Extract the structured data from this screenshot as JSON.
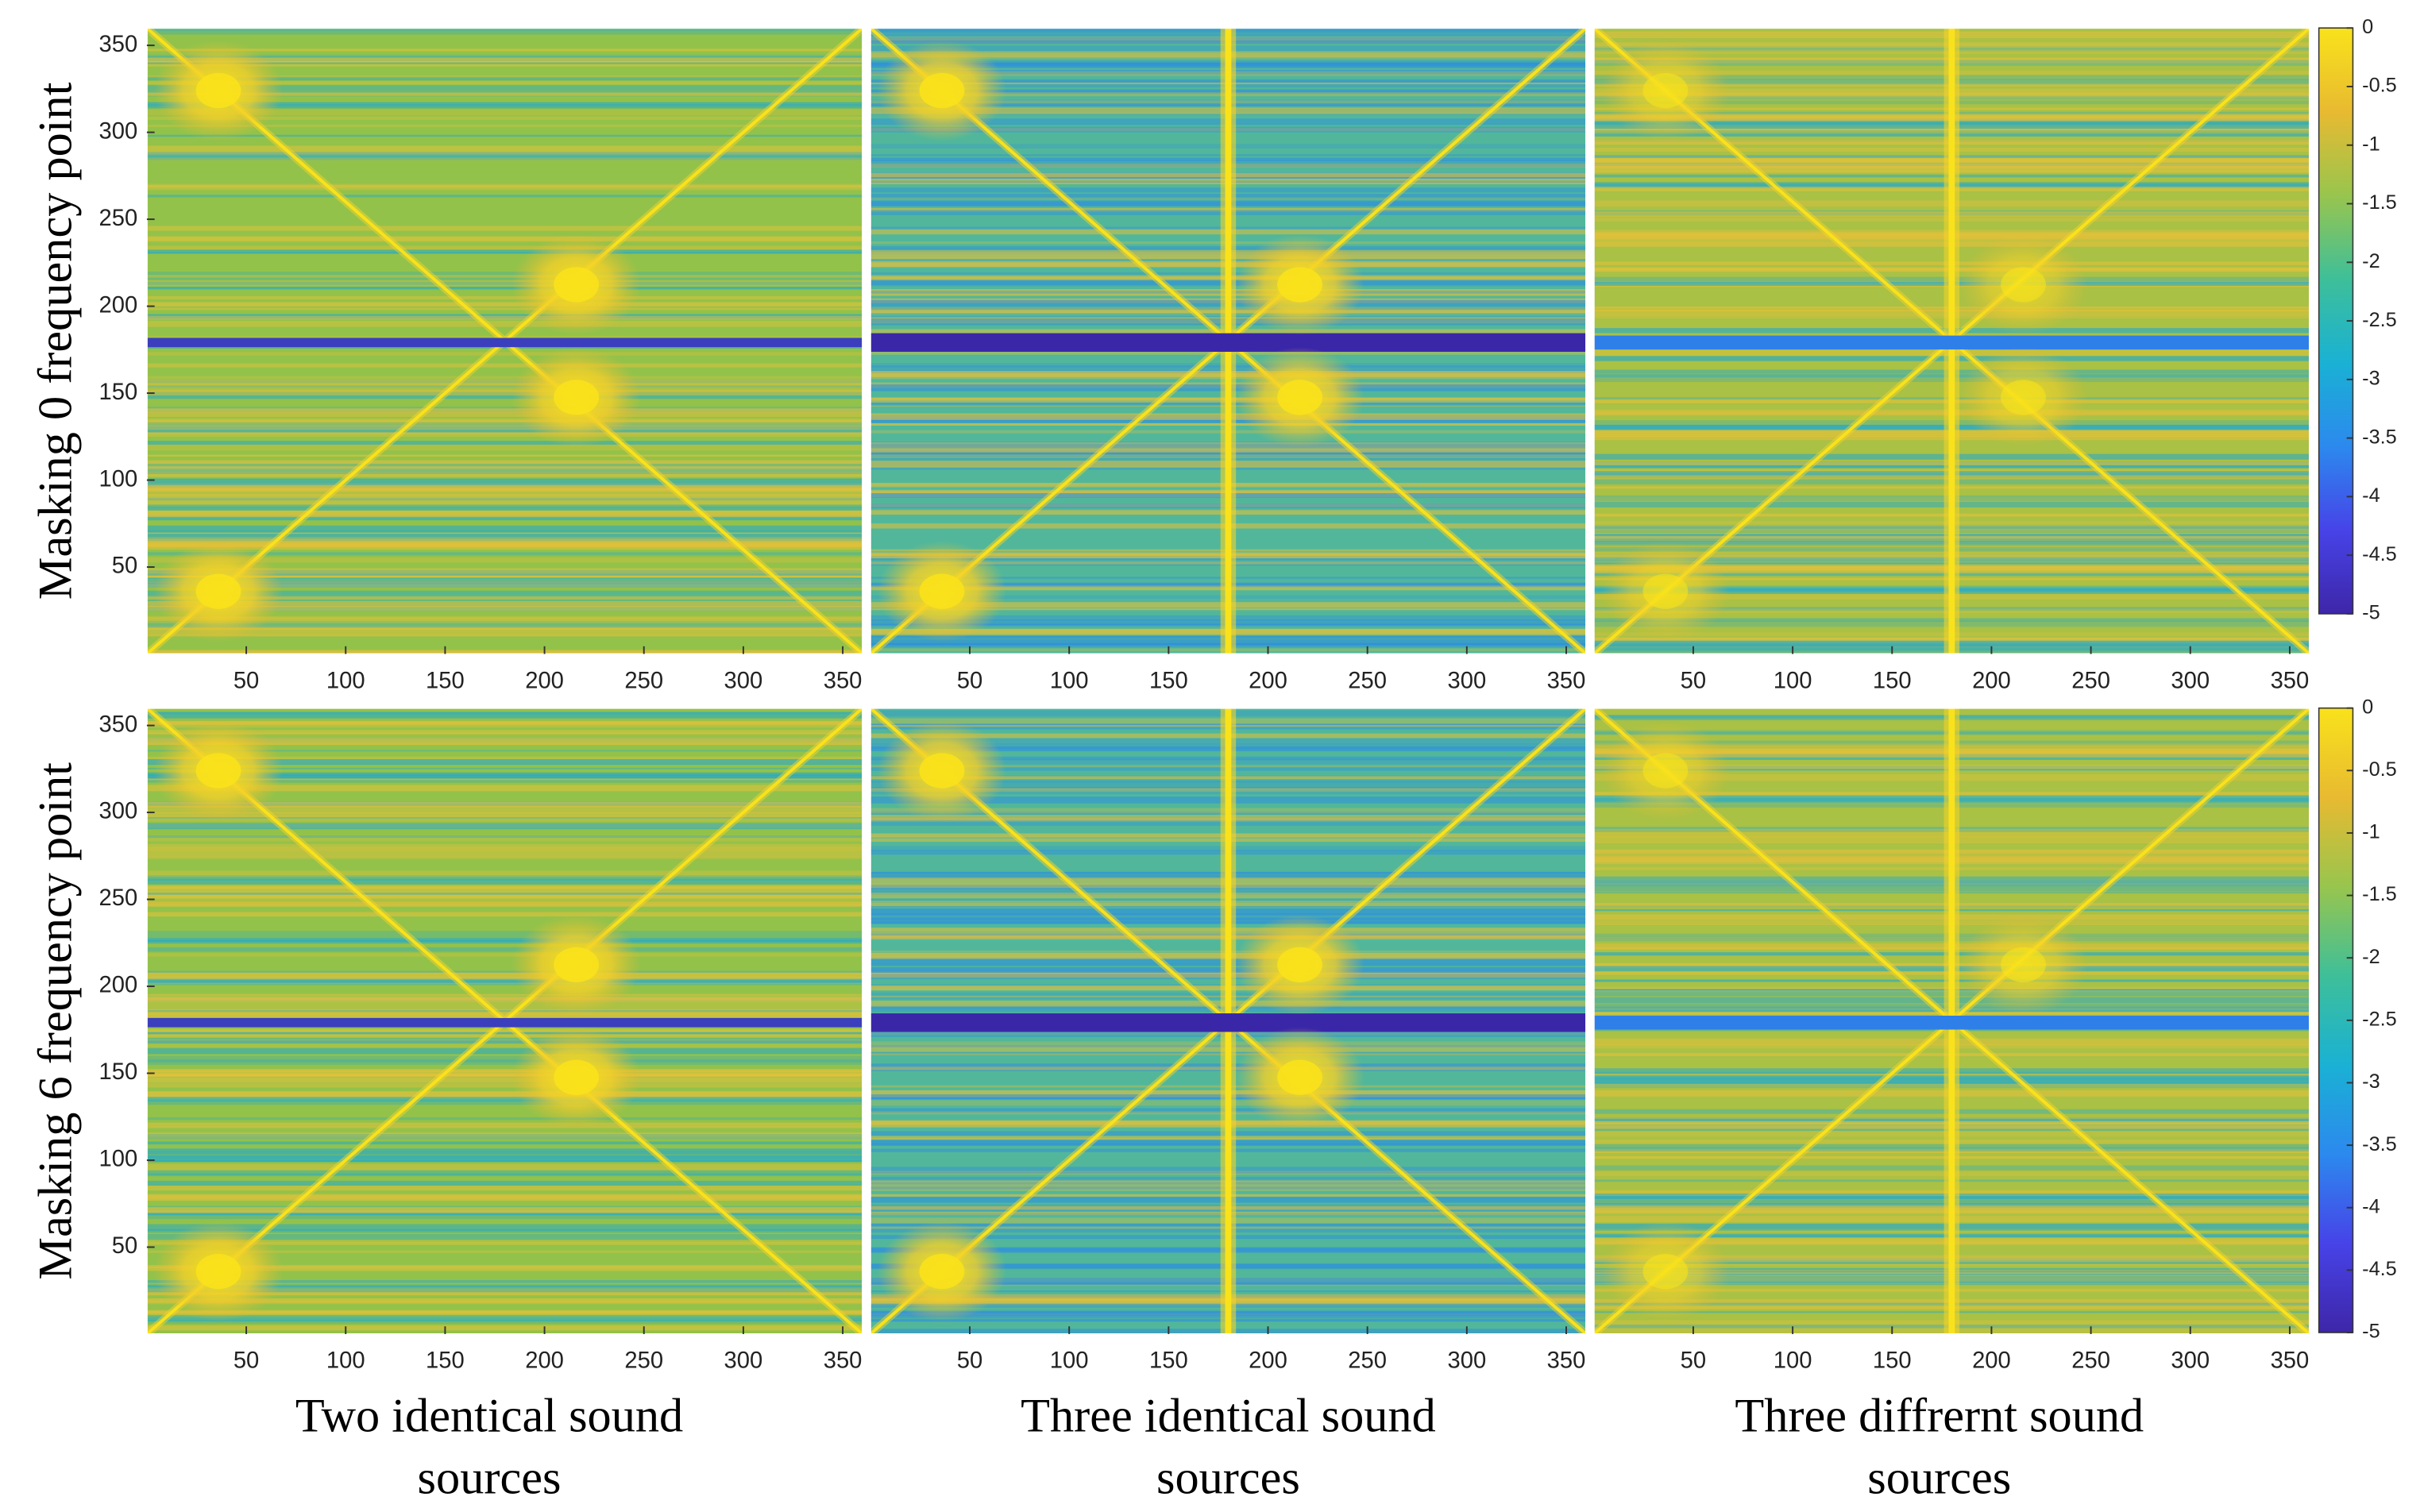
{
  "row_labels": [
    "Masking 0 frequency point",
    "Masking 6 frequency point"
  ],
  "column_labels": [
    [
      "Two identical sound",
      "sources"
    ],
    [
      "Three identical sound",
      "sources"
    ],
    [
      "Three diffrernt sound",
      "sources"
    ]
  ],
  "chart_data": [
    {
      "type": "heatmap",
      "xlim": [
        0,
        360
      ],
      "xticks": [
        50,
        100,
        150,
        200,
        250,
        300,
        350
      ],
      "ylim": [
        0,
        360
      ],
      "yticks": [
        50,
        100,
        150,
        200,
        250,
        300,
        350
      ]
    },
    {
      "type": "heatmap",
      "xlim": [
        0,
        360
      ],
      "xticks": [
        50,
        100,
        150,
        200,
        250,
        300,
        350
      ],
      "ylim": [
        0,
        360
      ]
    },
    {
      "type": "heatmap",
      "xlim": [
        0,
        360
      ],
      "xticks": [
        50,
        100,
        150,
        200,
        250,
        300,
        350
      ],
      "ylim": [
        0,
        360
      ],
      "colorbar": {
        "clim": [
          -5,
          0
        ],
        "ticks": [
          0,
          -0.5,
          -1,
          -1.5,
          -2,
          -2.5,
          -3,
          -3.5,
          -4,
          -4.5,
          -5
        ],
        "colormap": [
          "#3e26a8",
          "#4743e8",
          "#2c89ee",
          "#1ab1d4",
          "#3ebf99",
          "#98c54e",
          "#e8ba31",
          "#f9e21b"
        ]
      }
    },
    {
      "type": "heatmap",
      "xlim": [
        0,
        360
      ],
      "xticks": [
        50,
        100,
        150,
        200,
        250,
        300,
        350
      ],
      "ylim": [
        0,
        360
      ],
      "yticks": [
        50,
        100,
        150,
        200,
        250,
        300,
        350
      ]
    },
    {
      "type": "heatmap",
      "xlim": [
        0,
        360
      ],
      "xticks": [
        50,
        100,
        150,
        200,
        250,
        300,
        350
      ],
      "ylim": [
        0,
        360
      ]
    },
    {
      "type": "heatmap",
      "xlim": [
        0,
        360
      ],
      "xticks": [
        50,
        100,
        150,
        200,
        250,
        300,
        350
      ],
      "ylim": [
        0,
        360
      ],
      "colorbar": {
        "clim": [
          -5,
          0
        ],
        "ticks": [
          0,
          -0.5,
          -1,
          -1.5,
          -2,
          -2.5,
          -3,
          -3.5,
          -4,
          -4.5,
          -5
        ],
        "colormap": [
          "#3e26a8",
          "#4743e8",
          "#2c89ee",
          "#1ab1d4",
          "#3ebf99",
          "#98c54e",
          "#e8ba31",
          "#f9e21b"
        ]
      }
    }
  ]
}
